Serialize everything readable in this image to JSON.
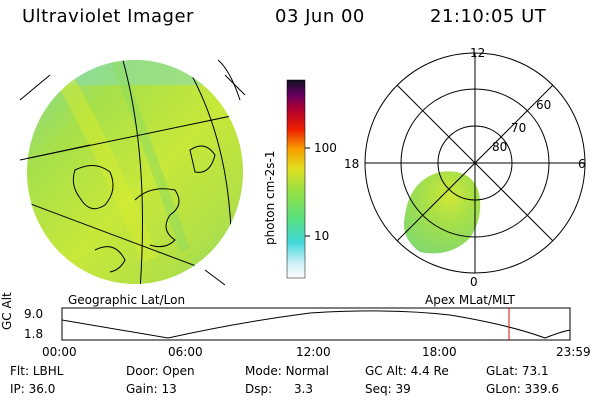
{
  "header": {
    "instrument": "Ultraviolet Imager",
    "date": "03 Jun 00",
    "time": "21:10:05 UT"
  },
  "colorbar": {
    "unit_label": "photon cm-2s-1",
    "ticks": [
      "100",
      "10"
    ]
  },
  "panels": {
    "left_label": "Geographic Lat/Lon",
    "right_label": "Apex MLat/MLT"
  },
  "polar": {
    "mlt_labels": {
      "top": "12",
      "left": "18",
      "right": "6",
      "bottom": "0"
    },
    "lat_labels": [
      "60",
      "70",
      "80"
    ]
  },
  "altitude_plot": {
    "axis_label": "GC Alt",
    "y_ticks": [
      "9.0",
      "1.8"
    ],
    "x_ticks": [
      "00:00",
      "06:00",
      "12:00",
      "18:00",
      "23:59"
    ]
  },
  "info": {
    "flt": {
      "label": "Flt:",
      "value": "LBHL"
    },
    "door": {
      "label": "Door:",
      "value": "Open"
    },
    "mode": {
      "label": "Mode:",
      "value": "Normal"
    },
    "gcalt": {
      "label": "GC Alt:",
      "value": "4.4 Re"
    },
    "glat": {
      "label": "GLat:",
      "value": "73.1"
    },
    "ip": {
      "label": "IP:",
      "value": "36.0"
    },
    "gain": {
      "label": "Gain:",
      "value": "13"
    },
    "dsp": {
      "label": "Dsp:",
      "value": "3.3"
    },
    "seq": {
      "label": "Seq:",
      "value": "39"
    },
    "glon": {
      "label": "GLon:",
      "value": "339.6"
    }
  },
  "colors": {
    "image_base": "#9ee04a",
    "marker": "#d01010"
  }
}
